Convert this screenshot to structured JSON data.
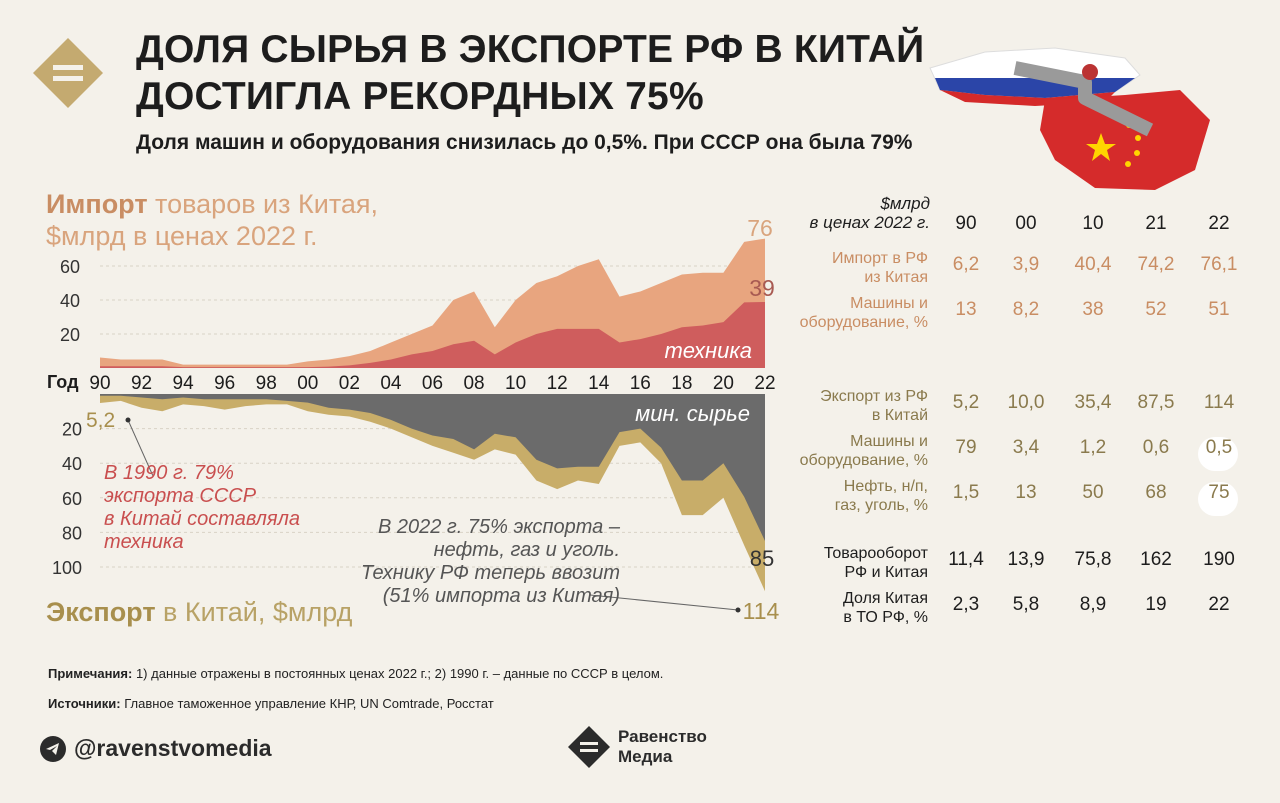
{
  "header": {
    "title_line1": "ДОЛЯ СЫРЬЯ В ЭКСПОРТЕ РФ В КИТАЙ",
    "title_line2": "ДОСТИГЛА РЕКОРДНЫХ 75%",
    "subtitle": "Доля машин и оборудования снизилась до 0,5%. При СССР она была 79%"
  },
  "import_title": {
    "bold": "Импорт",
    "rest1": " товаров из Китая,",
    "rest2": "$млрд в ценах 2022 г."
  },
  "export_title": {
    "bold": "Экспорт",
    "rest": " в Китай, $млрд"
  },
  "axis": {
    "year_label": "Год"
  },
  "chart_labels": {
    "tech": "техника",
    "raw": "мин. сырье",
    "import_end_total": "76",
    "import_end_tech": "39",
    "export_start": "5,2",
    "export_end_raw": "85",
    "export_end_total": "114"
  },
  "annotations": {
    "red": [
      "В 1990 г. 79%",
      "экспорта СССР",
      "в Китай составляла",
      "техника"
    ],
    "gray": [
      "В 2022 г. 75% экспорта –",
      "нефть, газ и уголь.",
      "Технику РФ теперь ввозит",
      "(51% импорта из Китая)"
    ]
  },
  "chart_data": {
    "type": "area",
    "title": "Доля сырья в экспорте РФ в Китай",
    "years": [
      1990,
      1991,
      1992,
      1993,
      1994,
      1995,
      1996,
      1997,
      1998,
      1999,
      2000,
      2001,
      2002,
      2003,
      2004,
      2005,
      2006,
      2007,
      2008,
      2009,
      2010,
      2011,
      2012,
      2013,
      2014,
      2015,
      2016,
      2017,
      2018,
      2019,
      2020,
      2021,
      2022
    ],
    "x_ticks": [
      "90",
      "92",
      "94",
      "96",
      "98",
      "00",
      "02",
      "04",
      "06",
      "08",
      "10",
      "12",
      "14",
      "16",
      "18",
      "20",
      "22"
    ],
    "import": {
      "ylabel": "$млрд в ценах 2022 г.",
      "y_ticks": [
        20,
        40,
        60
      ],
      "ylim": [
        0,
        80
      ],
      "series": [
        {
          "name": "Импорт всего",
          "color": "#e8a57f",
          "values": [
            6.2,
            5,
            5,
            5,
            2,
            2,
            2,
            2,
            2,
            2,
            3.9,
            5,
            7,
            10,
            15,
            20,
            25,
            40,
            45,
            24,
            40,
            50,
            54,
            60,
            64,
            42,
            45,
            50,
            55,
            56,
            56,
            74.2,
            76.1
          ]
        },
        {
          "name": "техника",
          "color": "#cf5d5d",
          "values": [
            1,
            1,
            1,
            1,
            0.5,
            0.5,
            0.5,
            0.5,
            0.5,
            0.5,
            0.5,
            0.8,
            1.5,
            3,
            5,
            8,
            10,
            14,
            16,
            8,
            15,
            20,
            23,
            23,
            23,
            15,
            17,
            20,
            24,
            25,
            27,
            38.6,
            38.8
          ]
        }
      ]
    },
    "export": {
      "ylabel": "$млрд",
      "y_ticks": [
        20,
        40,
        60,
        80,
        100
      ],
      "ylim": [
        0,
        120
      ],
      "series": [
        {
          "name": "Экспорт всего",
          "color": "#c8ad69",
          "values": [
            5.2,
            4,
            8,
            10,
            6,
            7,
            9,
            7,
            6,
            6,
            10,
            12,
            13,
            16,
            20,
            25,
            30,
            34,
            38,
            32,
            35,
            50,
            55,
            50,
            52,
            30,
            28,
            40,
            70,
            70,
            60,
            87.5,
            114
          ]
        },
        {
          "name": "мин. сырье",
          "color": "#6b6b6b",
          "values": [
            1,
            1,
            2,
            3,
            2,
            3,
            3,
            3,
            3,
            4,
            5,
            8,
            9,
            11,
            15,
            20,
            24,
            26,
            32,
            23,
            25,
            38,
            43,
            42,
            42,
            22,
            20,
            31,
            50,
            50,
            40,
            59.5,
            85
          ]
        }
      ]
    }
  },
  "table": {
    "unit": [
      "$млрд",
      "в ценах 2022 г."
    ],
    "years": [
      "90",
      "00",
      "10",
      "21",
      "22"
    ],
    "rows": [
      {
        "label": [
          "Импорт в РФ",
          "из Китая"
        ],
        "values": [
          "6,2",
          "3,9",
          "40,4",
          "74,2",
          "76,1"
        ],
        "color": "#c98d63"
      },
      {
        "label": [
          "Машины и",
          "оборудование, %"
        ],
        "values": [
          "13",
          "8,2",
          "38",
          "52",
          "51"
        ],
        "color": "#c98d63"
      },
      {
        "label": [
          "Экспорт из РФ",
          "в Китай"
        ],
        "values": [
          "5,2",
          "10,0",
          "35,4",
          "87,5",
          "114"
        ],
        "color": "#8a7a4d"
      },
      {
        "label": [
          "Машины и",
          "оборудование, %"
        ],
        "values": [
          "79",
          "3,4",
          "1,2",
          "0,6",
          "0,5"
        ],
        "color": "#8a7a4d"
      },
      {
        "label": [
          "Нефть, н/п,",
          "газ, уголь, %"
        ],
        "values": [
          "1,5",
          "13",
          "50",
          "68",
          "75"
        ],
        "color": "#8a7a4d"
      },
      {
        "label": [
          "Товарооборот",
          "РФ и Китая"
        ],
        "values": [
          "11,4",
          "13,9",
          "75,8",
          "162",
          "190"
        ],
        "color": "#1d1d1d"
      },
      {
        "label": [
          "Доля Китая",
          "в ТО РФ, %"
        ],
        "values": [
          "2,3",
          "5,8",
          "8,9",
          "19",
          "22"
        ],
        "color": "#1d1d1d"
      }
    ]
  },
  "footer": {
    "note_bold": "Примечания:",
    "note": " 1) данные отражены в постоянных ценах 2022 г.; 2) 1990 г. – данные по СССР в целом.",
    "source_bold": "Источники:",
    "source": " Главное таможенное управление КНР, UN Comtrade, Росстат",
    "handle": "@ravenstvomedia",
    "brand_line1": "Равенство",
    "brand_line2": "Медиа"
  },
  "colors": {
    "background": "#f4f1ea",
    "import_total": "#e8a57f",
    "import_tech": "#cf5d5d",
    "export_total": "#c8ad69",
    "export_raw": "#6b6b6b",
    "logo": "#c4aa70"
  }
}
